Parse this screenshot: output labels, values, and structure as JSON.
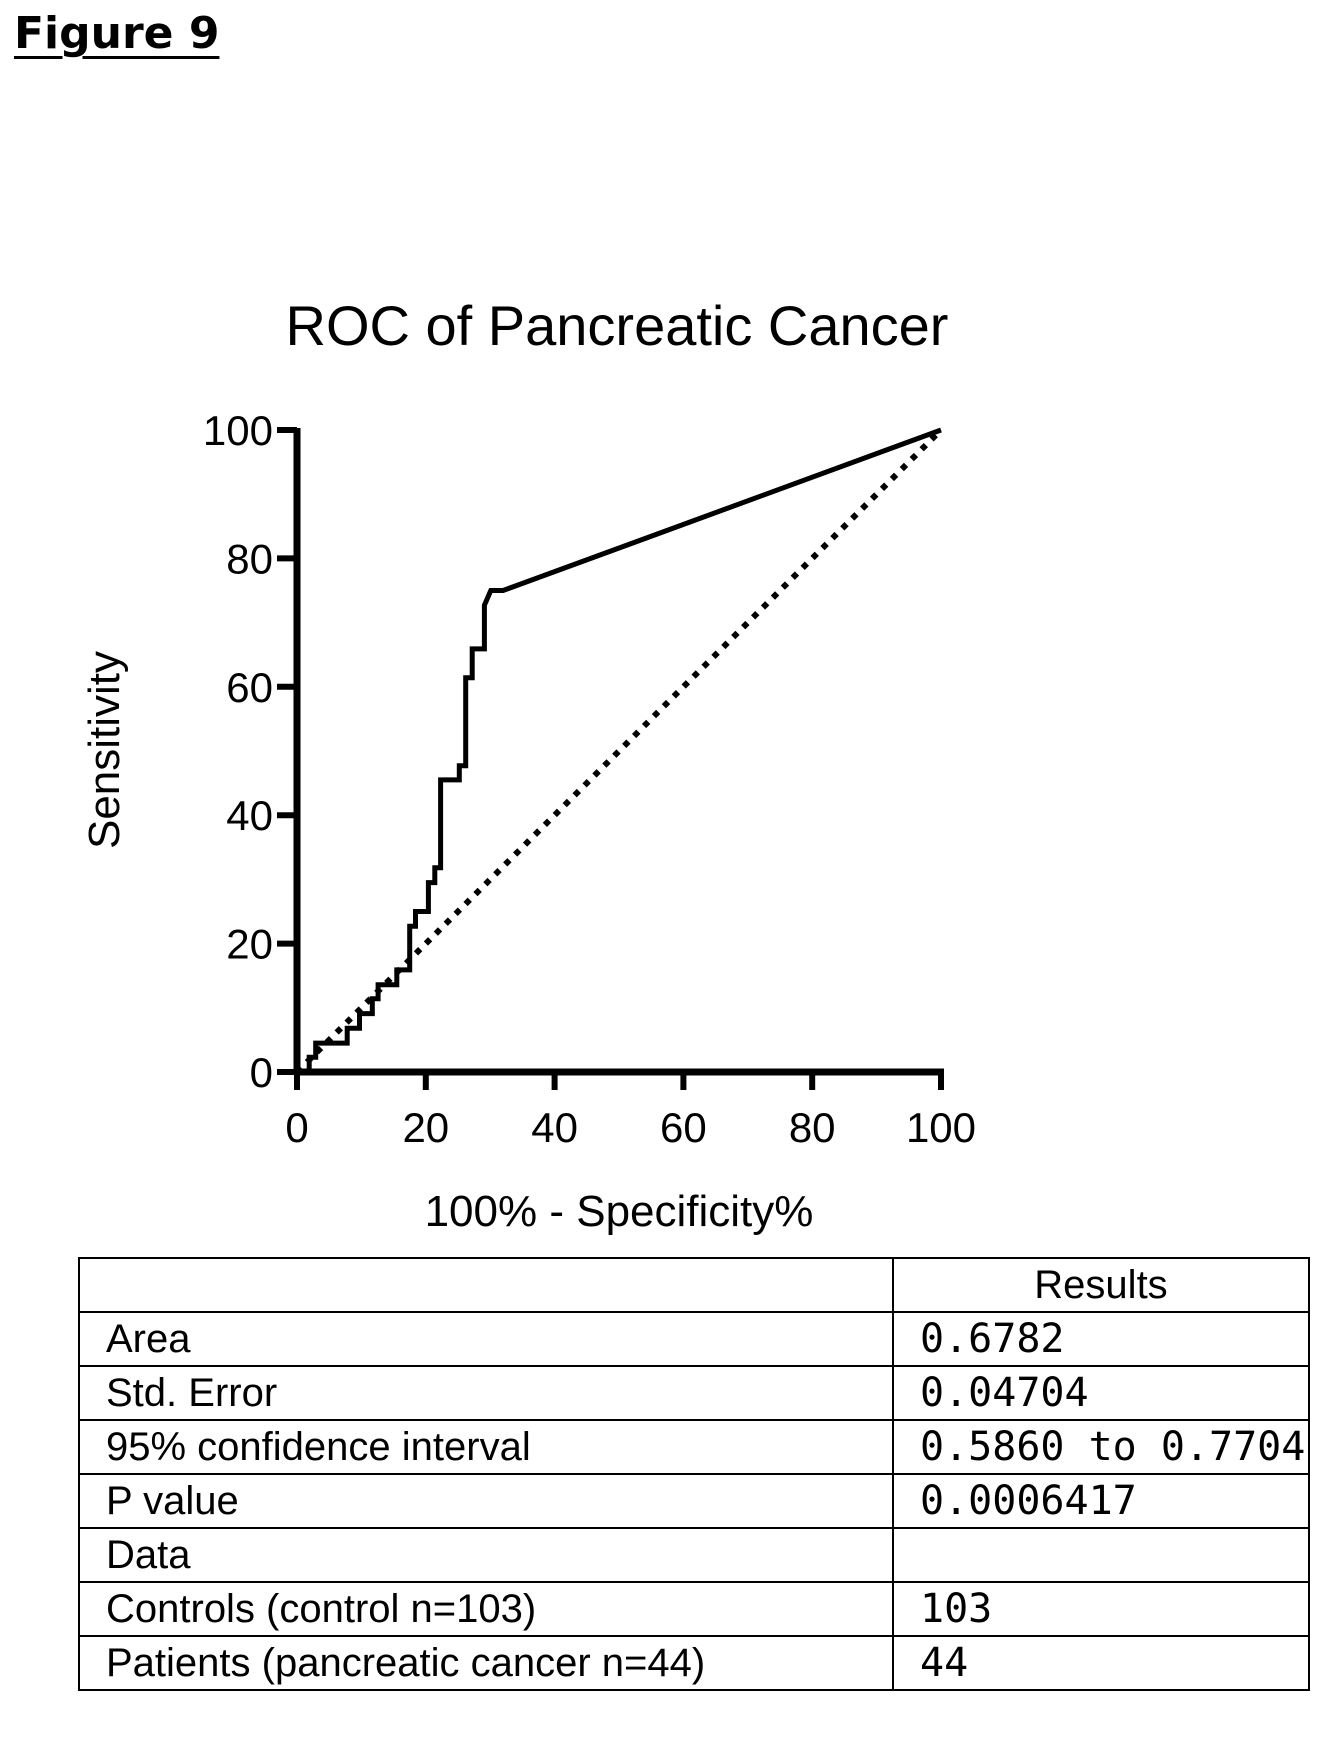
{
  "figure_label": "Figure 9",
  "chart_data": {
    "type": "line",
    "title": "ROC of Pancreatic Cancer",
    "xlabel": "100% - Specificity%",
    "ylabel": "Sensitivity",
    "xlim": [
      0,
      100
    ],
    "ylim": [
      0,
      100
    ],
    "xticks": [
      0,
      20,
      40,
      60,
      80,
      100
    ],
    "yticks": [
      0,
      20,
      40,
      60,
      80,
      100
    ],
    "grid": false,
    "series": [
      {
        "style": "solid",
        "x": [
          0,
          1.9,
          1.9,
          2.9,
          2.9,
          7.8,
          7.8,
          9.7,
          9.7,
          11.7,
          11.7,
          12.6,
          12.6,
          15.5,
          15.5,
          17.5,
          17.5,
          18.4,
          18.4,
          20.4,
          20.4,
          21.4,
          21.4,
          22.3,
          22.3,
          25.2,
          25.2,
          26.2,
          26.2,
          27.2,
          27.2,
          29.1,
          29.1,
          30.1,
          32,
          100
        ],
        "y": [
          0,
          0,
          2.3,
          2.3,
          4.5,
          4.5,
          6.8,
          6.8,
          9.1,
          9.1,
          11.4,
          11.4,
          13.6,
          13.6,
          15.9,
          15.9,
          22.7,
          22.7,
          25,
          25,
          29.5,
          29.5,
          31.8,
          31.8,
          45.5,
          45.5,
          47.7,
          47.7,
          61.4,
          61.4,
          65.9,
          65.9,
          72.7,
          75,
          75,
          100
        ]
      },
      {
        "style": "dotted",
        "x": [
          0,
          100
        ],
        "y": [
          0,
          100
        ]
      }
    ]
  },
  "table": {
    "header": [
      "",
      "Results"
    ],
    "rows": [
      [
        "Area",
        "0.6782"
      ],
      [
        "Std. Error",
        "0.04704"
      ],
      [
        "95% confidence interval",
        "0.5860 to 0.7704"
      ],
      [
        "P value",
        "0.0006417"
      ],
      [
        "Data",
        ""
      ],
      [
        "Controls (control n=103)",
        "103"
      ],
      [
        "Patients (pancreatic cancer n=44)",
        "44"
      ]
    ]
  }
}
